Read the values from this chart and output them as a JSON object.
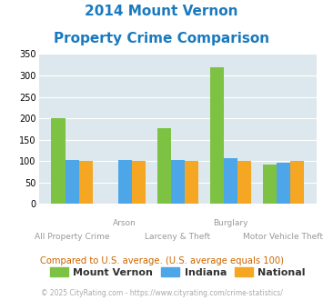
{
  "title_line1": "2014 Mount Vernon",
  "title_line2": "Property Crime Comparison",
  "categories": [
    "All Property Crime",
    "Arson",
    "Larceny & Theft",
    "Burglary",
    "Motor Vehicle Theft"
  ],
  "cat_labels_row1": [
    "",
    "Arson",
    "",
    "Burglary",
    ""
  ],
  "cat_labels_row2": [
    "All Property Crime",
    "",
    "Larceny & Theft",
    "",
    "Motor Vehicle Theft"
  ],
  "mount_vernon": [
    200,
    0,
    177,
    318,
    93
  ],
  "indiana": [
    103,
    103,
    103,
    106,
    97
  ],
  "national": [
    100,
    100,
    100,
    100,
    100
  ],
  "color_mv": "#7dc243",
  "color_indiana": "#4da6e8",
  "color_national": "#f5a623",
  "ylim": [
    0,
    350
  ],
  "yticks": [
    0,
    50,
    100,
    150,
    200,
    250,
    300,
    350
  ],
  "bg_plot": "#dce8ed",
  "bg_fig": "#ffffff",
  "title_color": "#1a7abf",
  "label_color": "#999999",
  "legend_labels": [
    "Mount Vernon",
    "Indiana",
    "National"
  ],
  "note_text": "Compared to U.S. average. (U.S. average equals 100)",
  "note_color": "#cc6600",
  "credit_text": "© 2025 CityRating.com - https://www.cityrating.com/crime-statistics/",
  "credit_color": "#aaaaaa",
  "grid_color": "#ffffff"
}
